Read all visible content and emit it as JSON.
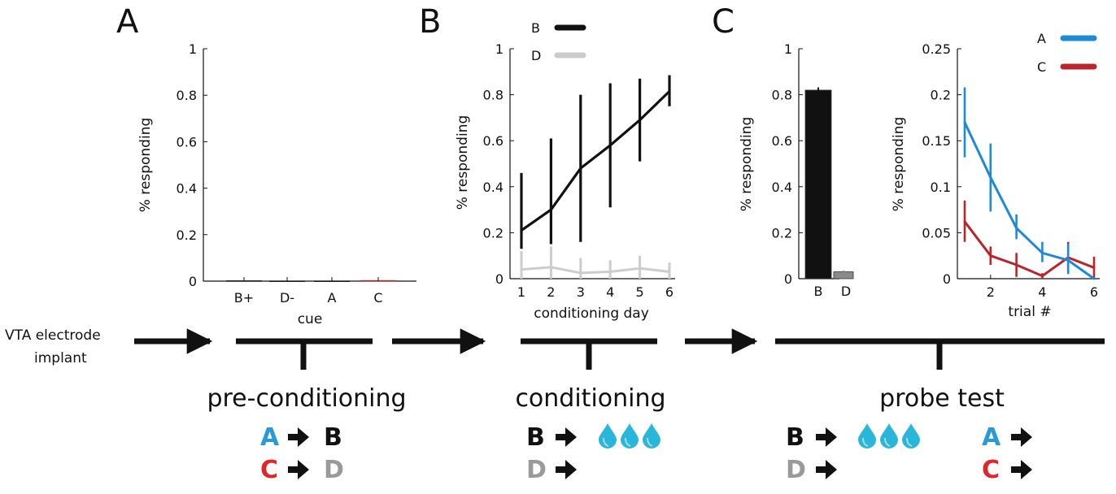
{
  "labels": {
    "panel_a": "A",
    "panel_b": "B",
    "panel_c": "C",
    "implant_line1": "VTA electrode",
    "implant_line2": "implant",
    "phase_pre": "pre-conditioning",
    "phase_cond": "conditioning",
    "phase_probe": "probe test"
  },
  "cue_rows": {
    "pre": [
      {
        "left": "A",
        "left_color": "#2a9ad6",
        "right": "B",
        "right_color": "#111111"
      },
      {
        "left": "C",
        "left_color": "#e0262a",
        "right": "D",
        "right_color": "#9a9a9a"
      }
    ],
    "cond": [
      {
        "left": "B",
        "left_color": "#111111",
        "reward": true
      },
      {
        "left": "D",
        "left_color": "#9a9a9a",
        "reward": false
      }
    ],
    "probe_left": [
      {
        "left": "B",
        "left_color": "#111111",
        "reward": true
      },
      {
        "left": "D",
        "left_color": "#9a9a9a",
        "reward": false
      }
    ],
    "probe_right": [
      {
        "left": "A",
        "left_color": "#2a9ad6"
      },
      {
        "left": "C",
        "left_color": "#e0262a"
      }
    ]
  },
  "colors": {
    "black": "#111111",
    "gray": "#cccccc",
    "blue": "#1f8ad4",
    "red": "#b8262b",
    "bar_d": "#8a8a8a",
    "drop": "#29b6d8"
  },
  "chart_data": [
    {
      "id": "A",
      "type": "bar",
      "categories": [
        "B+",
        "D-",
        "A",
        "C"
      ],
      "values": [
        0.003,
        0.002,
        0.002,
        0.004
      ],
      "bar_colors": [
        "#111111",
        "#111111",
        "#111111",
        "#b8262b"
      ],
      "xlabel": "cue",
      "ylabel": "% responding",
      "ylim": [
        0,
        1
      ],
      "yticks": [
        "0",
        "0.2",
        "0.4",
        "0.6",
        "0.8",
        "1"
      ]
    },
    {
      "id": "B",
      "type": "line",
      "x": [
        1,
        2,
        3,
        4,
        5,
        6
      ],
      "xticks": [
        "1",
        "2",
        "3",
        "4",
        "5",
        "6"
      ],
      "series": [
        {
          "name": "B",
          "color": "#111111",
          "values": [
            0.21,
            0.3,
            0.48,
            0.58,
            0.69,
            0.815
          ],
          "err_low": [
            0.13,
            0.15,
            0.16,
            0.31,
            0.51,
            0.75
          ],
          "err_high": [
            0.46,
            0.61,
            0.8,
            0.85,
            0.87,
            0.885
          ]
        },
        {
          "name": "D",
          "color": "#cccccc",
          "values": [
            0.04,
            0.05,
            0.025,
            0.03,
            0.045,
            0.03
          ],
          "err_low": [
            0.0,
            0.0,
            0.0,
            0.0,
            0.0,
            0.0
          ],
          "err_high": [
            0.12,
            0.14,
            0.09,
            0.08,
            0.1,
            0.07
          ]
        }
      ],
      "xlabel": "conditioning day",
      "ylabel": "% responding",
      "ylim": [
        0,
        1
      ],
      "yticks": [
        "0",
        "0.2",
        "0.4",
        "0.6",
        "0.8",
        "1"
      ],
      "legend_position": "top-left"
    },
    {
      "id": "C1",
      "type": "bar",
      "categories": [
        "B",
        "D"
      ],
      "values": [
        0.82,
        0.03
      ],
      "errors": [
        0.012,
        0.005
      ],
      "bar_colors": [
        "#111111",
        "#8a8a8a"
      ],
      "ylabel": "% responding",
      "ylim": [
        0,
        1
      ],
      "yticks": [
        "0",
        "0.2",
        "0.4",
        "0.6",
        "0.8",
        "1"
      ]
    },
    {
      "id": "C2",
      "type": "line",
      "x": [
        1,
        2,
        3,
        4,
        5,
        6
      ],
      "xticks": [
        "2",
        "4",
        "6"
      ],
      "xtick_values": [
        2,
        4,
        6
      ],
      "series": [
        {
          "name": "A",
          "color": "#1f8ad4",
          "values": [
            0.17,
            0.11,
            0.055,
            0.028,
            0.02,
            0.0
          ],
          "err_low": [
            0.132,
            0.073,
            0.043,
            0.018,
            0.005,
            0.0
          ],
          "err_high": [
            0.208,
            0.147,
            0.07,
            0.04,
            0.038,
            0.0
          ]
        },
        {
          "name": "C",
          "color": "#b8262b",
          "values": [
            0.062,
            0.025,
            0.015,
            0.003,
            0.023,
            0.012
          ],
          "err_low": [
            0.04,
            0.015,
            0.002,
            0.0,
            0.008,
            0.0
          ],
          "err_high": [
            0.085,
            0.035,
            0.028,
            0.006,
            0.04,
            0.024
          ]
        }
      ],
      "xlabel": "trial #",
      "ylabel": "% responding",
      "xlim": [
        0.9,
        6.1
      ],
      "ylim": [
        0,
        0.25
      ],
      "yticks": [
        "0",
        "0.05",
        "0.1",
        "0.15",
        "0.2",
        "0.25"
      ],
      "ytick_values": [
        0,
        0.05,
        0.1,
        0.15,
        0.2,
        0.25
      ],
      "legend_position": "top-right"
    }
  ]
}
